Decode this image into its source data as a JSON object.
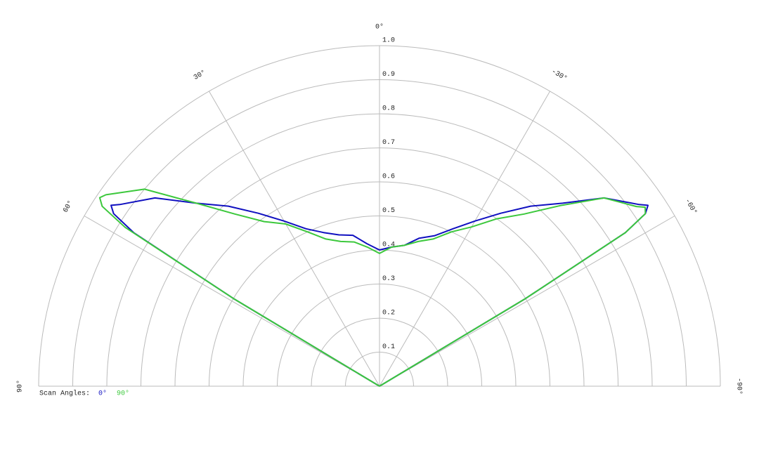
{
  "chart_data": {
    "type": "polar",
    "rlim": [
      0,
      1
    ],
    "rticks": [
      0.1,
      0.2,
      0.3,
      0.4,
      0.5,
      0.6,
      0.7,
      0.8,
      0.9,
      {
        "value": 1,
        "label": "1.0"
      }
    ],
    "thetaticks": [
      {
        "value": 90,
        "label": "90°"
      },
      {
        "value": 60,
        "label": "60°"
      },
      {
        "value": 30,
        "label": "30°"
      },
      {
        "value": 0,
        "label": "0°"
      },
      {
        "value": -30,
        "label": "-30°"
      },
      {
        "value": -60,
        "label": "-60°"
      },
      {
        "value": -90,
        "label": "-90°"
      }
    ],
    "grid": true,
    "legend_title": "Scan Angles:",
    "series": [
      {
        "name": "0°",
        "color": "#1010c0",
        "theta": [
          -60,
          -59,
          -58,
          -57,
          -56,
          -55,
          -50,
          -45,
          -40,
          -35,
          -30,
          -25,
          -20,
          -15,
          -10,
          -5,
          0,
          5,
          10,
          15,
          20,
          25,
          30,
          35,
          40,
          45,
          50,
          55,
          56,
          57,
          58,
          59,
          60
        ],
        "values": [
          0,
          0.5,
          0.85,
          0.93,
          0.95,
          0.93,
          0.86,
          0.76,
          0.69,
          0.62,
          0.56,
          0.51,
          0.47,
          0.45,
          0.42,
          0.41,
          0.4,
          0.42,
          0.45,
          0.46,
          0.48,
          0.51,
          0.56,
          0.62,
          0.69,
          0.76,
          0.86,
          0.93,
          0.95,
          0.93,
          0.85,
          0.5,
          0
        ]
      },
      {
        "name": "90°",
        "color": "#3cc83c",
        "theta": [
          -60,
          -59,
          -58,
          -57,
          -56,
          -55,
          -50,
          -45,
          -40,
          -35,
          -30,
          -25,
          -20,
          -15,
          -10,
          -5,
          0,
          5,
          10,
          15,
          20,
          25,
          30,
          35,
          40,
          45,
          50,
          55,
          56,
          57,
          58,
          59,
          60
        ],
        "values": [
          0,
          0.5,
          0.85,
          0.93,
          0.94,
          0.92,
          0.86,
          0.75,
          0.66,
          0.6,
          0.54,
          0.5,
          0.46,
          0.44,
          0.42,
          0.41,
          0.39,
          0.41,
          0.43,
          0.44,
          0.46,
          0.5,
          0.55,
          0.59,
          0.66,
          0.76,
          0.9,
          0.98,
          0.99,
          0.97,
          0.88,
          0.5,
          0
        ]
      }
    ]
  }
}
